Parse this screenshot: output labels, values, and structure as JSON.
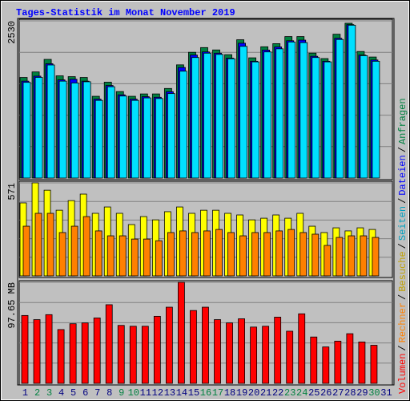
{
  "title": "Tages-Statistik im Monat November 2019",
  "legend_separator": "/",
  "chart_data": [
    {
      "type": "bar",
      "max_label": "2530",
      "ylim": [
        0,
        2530
      ],
      "series": [
        {
          "name": "Anfragen",
          "color": "#008040",
          "values": [
            1619,
            1708,
            1910,
            1645,
            1632,
            1619,
            1316,
            1543,
            1392,
            1316,
            1354,
            1354,
            1442,
            1822,
            2024,
            2100,
            2062,
            1986,
            2226,
            1935,
            2113,
            2163,
            2277,
            2277,
            2011,
            1923,
            2315,
            2492,
            2037,
            1948,
            null
          ]
        },
        {
          "name": "Dateien",
          "color": "#0000ff",
          "values": [
            1560,
            1640,
            1840,
            1580,
            1590,
            1560,
            1270,
            1490,
            1340,
            1270,
            1310,
            1300,
            1390,
            1780,
            1980,
            2030,
            2010,
            1930,
            2170,
            1880,
            2060,
            2110,
            2210,
            2220,
            1960,
            1880,
            2250,
            2470,
            1980,
            1900,
            null
          ]
        },
        {
          "name": "Seiten",
          "color": "#00e0ff",
          "values": [
            1540,
            1620,
            1820,
            1560,
            1530,
            1550,
            1250,
            1470,
            1320,
            1250,
            1290,
            1280,
            1360,
            1720,
            1940,
            2010,
            1990,
            1920,
            2120,
            1870,
            2030,
            2080,
            2190,
            2180,
            1940,
            1870,
            2230,
            2460,
            1970,
            1880,
            null
          ]
        }
      ]
    },
    {
      "type": "bar",
      "max_label": "571",
      "ylim": [
        0,
        571
      ],
      "series": [
        {
          "name": "Besuche",
          "color": "#ffff00",
          "values": [
            448,
            571,
            526,
            403,
            462,
            502,
            384,
            423,
            384,
            315,
            364,
            344,
            394,
            423,
            384,
            403,
            403,
            384,
            374,
            344,
            354,
            374,
            354,
            384,
            305,
            266,
            295,
            276,
            295,
            285,
            null
          ]
        },
        {
          "name": "Rechner",
          "color": "#ff8000",
          "values": [
            305,
            384,
            384,
            266,
            305,
            364,
            276,
            246,
            246,
            226,
            226,
            216,
            266,
            276,
            266,
            276,
            285,
            266,
            246,
            266,
            266,
            276,
            285,
            266,
            256,
            187,
            236,
            246,
            246,
            236,
            null
          ]
        }
      ]
    },
    {
      "type": "bar",
      "max_label": "97.65 MB",
      "ylim": [
        0,
        97.65
      ],
      "categories": [
        "1",
        "2",
        "3",
        "4",
        "5",
        "6",
        "7",
        "8",
        "9",
        "10",
        "11",
        "12",
        "13",
        "14",
        "15",
        "16",
        "17",
        "18",
        "19",
        "20",
        "21",
        "22",
        "23",
        "24",
        "25",
        "26",
        "27",
        "28",
        "29",
        "30",
        "31"
      ],
      "category_colors": [
        "#000080",
        "#008040",
        "#008040",
        "#000080",
        "#000080",
        "#000080",
        "#000080",
        "#000080",
        "#008040",
        "#008040",
        "#000080",
        "#000080",
        "#000080",
        "#000080",
        "#000080",
        "#008040",
        "#008040",
        "#000080",
        "#000080",
        "#000080",
        "#000080",
        "#000080",
        "#008040",
        "#008040",
        "#000080",
        "#000080",
        "#000080",
        "#000080",
        "#000080",
        "#008040",
        "#000080"
      ],
      "series": [
        {
          "name": "Volumen",
          "color": "#ff0000",
          "values": [
            65.6,
            61.6,
            66.4,
            52.0,
            57.6,
            58.4,
            63.2,
            76.0,
            56.0,
            55.2,
            55.2,
            64.8,
            73.6,
            97.65,
            70.4,
            73.6,
            61.6,
            58.4,
            62.4,
            54.4,
            55.2,
            64.0,
            50.4,
            67.2,
            44.8,
            35.2,
            40.8,
            48.0,
            40.0,
            36.8,
            null
          ]
        }
      ]
    }
  ]
}
